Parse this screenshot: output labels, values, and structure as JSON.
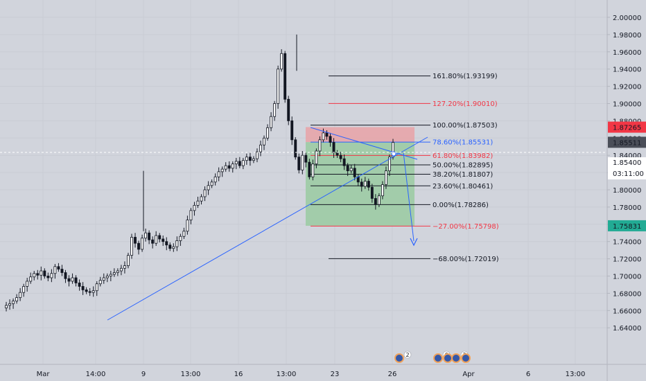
{
  "chart_data": {
    "type": "candlestick",
    "y_axis": {
      "range": [
        1.632,
        2.012
      ],
      "ticks": [
        "2.00000",
        "1.98000",
        "1.96000",
        "1.94000",
        "1.92000",
        "1.90000",
        "1.88000",
        "1.86000",
        "1.84000",
        "1.82000",
        "1.80000",
        "1.78000",
        "1.76000",
        "1.74000",
        "1.72000",
        "1.70000",
        "1.68000",
        "1.66000",
        "1.64000"
      ]
    },
    "x_axis": {
      "ticks": [
        "Mar",
        "14:00",
        "9",
        "13:00",
        "16",
        "13:00",
        "23",
        "26",
        "Apr",
        "6",
        "13:00"
      ]
    },
    "price_badges": {
      "upper_red": {
        "value": "1.87265",
        "color": "#f23645"
      },
      "current": {
        "value": "1.85511",
        "color": "#4a4e58"
      },
      "dark_value": "1.85400",
      "countdown": "03:11:00",
      "lower_green": {
        "value": "1.75831",
        "color": "#22ab94"
      }
    },
    "fib_levels": [
      {
        "label": "161.80%(1.93199)",
        "value": 1.93199,
        "color": "#131722"
      },
      {
        "label": "127.20%(1.90010)",
        "value": 1.9001,
        "color": "#f23645"
      },
      {
        "label": "100.00%(1.87503)",
        "value": 1.87503,
        "color": "#131722"
      },
      {
        "label": "78.60%(1.85531)",
        "value": 1.85531,
        "color": "#2962ff"
      },
      {
        "label": "61.80%(1.83982)",
        "value": 1.83982,
        "color": "#f23645"
      },
      {
        "label": "50.00%(1.82895)",
        "value": 1.82895,
        "color": "#131722"
      },
      {
        "label": "38.20%(1.81807)",
        "value": 1.81807,
        "color": "#131722"
      },
      {
        "label": "23.60%(1.80461)",
        "value": 1.80461,
        "color": "#131722"
      },
      {
        "label": "0.00%(1.78286)",
        "value": 1.78286,
        "color": "#131722"
      },
      {
        "label": "−27.00%(1.75798)",
        "value": 1.75798,
        "color": "#f23645"
      },
      {
        "label": "−68.00%(1.72019)",
        "value": 1.72019,
        "color": "#131722"
      }
    ],
    "position_box": {
      "entry": 1.8553,
      "stop": 1.8727,
      "target": 1.7583
    },
    "event_markers": [
      "2",
      "6",
      "3"
    ],
    "colors": {
      "up": "#ffffff",
      "down": "#131722",
      "trendline": "#2962ff",
      "profit_zone": "#9ccba4",
      "loss_zone": "#e7a5aa"
    }
  }
}
